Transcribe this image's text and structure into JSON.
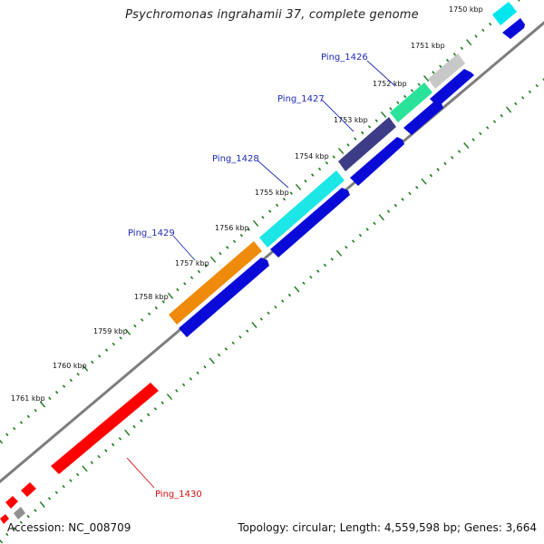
{
  "title": "Psychromonas ingrahamii 37, complete genome",
  "footer": {
    "accession": "Accession: NC_008709",
    "summary": "Topology: circular; Length: 4,559,598 bp; Genes: 3,664"
  },
  "colors": {
    "backbone": "#7a7a7a",
    "tick": "#1a7a1a",
    "label_blue": "#1f2bb5",
    "label_red": "#d01010",
    "reverse_gene": "#0a0ad8"
  },
  "ticks": [
    "1750 kbp",
    "1751 kbp",
    "1752 kbp",
    "1753 kbp",
    "1754 kbp",
    "1755 kbp",
    "1756 kbp",
    "1757 kbp",
    "1758 kbp",
    "1759 kbp",
    "1760 kbp",
    "1761 kbp"
  ],
  "gene_labels": [
    {
      "text": "Ping_1426",
      "color": "blue"
    },
    {
      "text": "Ping_1427",
      "color": "blue"
    },
    {
      "text": "Ping_1428",
      "color": "blue"
    },
    {
      "text": "Ping_1429",
      "color": "blue"
    },
    {
      "text": "Ping_1430",
      "color": "red"
    }
  ]
}
